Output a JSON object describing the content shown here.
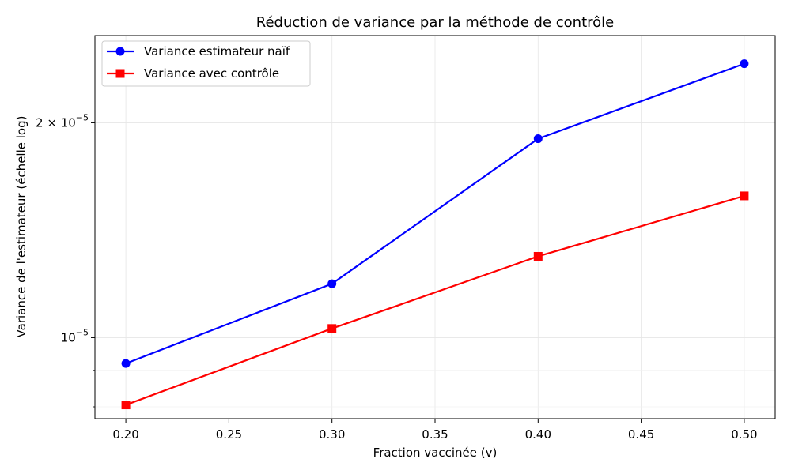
{
  "chart_data": {
    "type": "line",
    "title": "Réduction de variance par la méthode de contrôle",
    "xlabel": "Fraction vaccinée (v)",
    "ylabel": "Variance de l'estimateur (échelle log)",
    "x": [
      0.2,
      0.3,
      0.4,
      0.5
    ],
    "xticks": [
      "0.20",
      "0.25",
      "0.30",
      "0.35",
      "0.40",
      "0.45",
      "0.50"
    ],
    "xlim": [
      0.185,
      0.515
    ],
    "ylim": [
      7.7e-06,
      2.65e-05
    ],
    "yscale": "log",
    "yticks": [
      {
        "value": 1e-05,
        "base": "10",
        "exp": "−5",
        "coef": ""
      },
      {
        "value": 2e-05,
        "base": "10",
        "exp": "−5",
        "coef": "2 × "
      }
    ],
    "grid": true,
    "legend_position": "top-left",
    "series": [
      {
        "name": "Variance estimateur naïf",
        "color": "#0000ff",
        "marker": "circle",
        "values": [
          9.2e-06,
          1.19e-05,
          1.9e-05,
          2.42e-05
        ]
      },
      {
        "name": "Variance avec contrôle",
        "color": "#ff0000",
        "marker": "square",
        "values": [
          8.05e-06,
          1.03e-05,
          1.3e-05,
          1.58e-05
        ]
      }
    ]
  }
}
